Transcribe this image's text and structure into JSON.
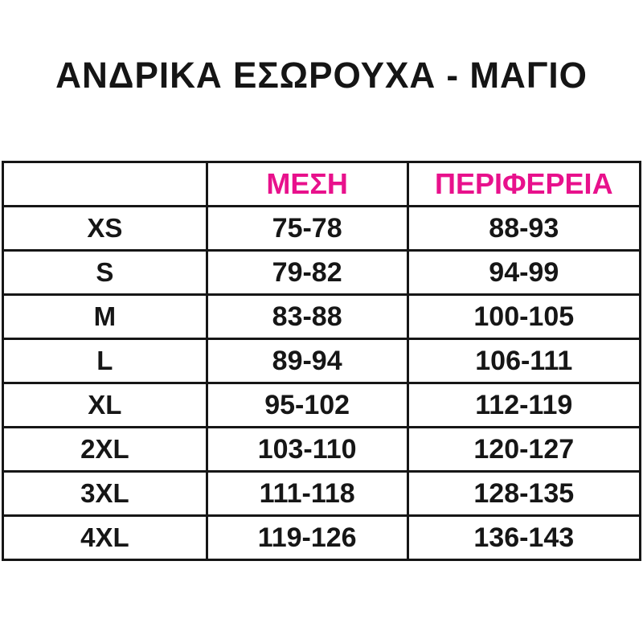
{
  "page": {
    "title": "ΑΝΔΡΙΚΑ ΕΣΩΡΟΥΧΑ - ΜΑΓΙΟ"
  },
  "colors": {
    "header_text": "#E8118C",
    "body_text": "#161616",
    "border": "#161616",
    "background": "#ffffff"
  },
  "table": {
    "headers": {
      "size": "",
      "waist": "ΜΕΣΗ",
      "hips": "ΠΕΡΙΦΕΡΕΙΑ"
    },
    "rows": [
      {
        "size": "XS",
        "waist": "75-78",
        "hips": "88-93"
      },
      {
        "size": "S",
        "waist": "79-82",
        "hips": "94-99"
      },
      {
        "size": "M",
        "waist": "83-88",
        "hips": "100-105"
      },
      {
        "size": "L",
        "waist": "89-94",
        "hips": "106-111"
      },
      {
        "size": "XL",
        "waist": "95-102",
        "hips": "112-119"
      },
      {
        "size": "2XL",
        "waist": "103-110",
        "hips": "120-127"
      },
      {
        "size": "3XL",
        "waist": "111-118",
        "hips": "128-135"
      },
      {
        "size": "4XL",
        "waist": "119-126",
        "hips": "136-143"
      }
    ]
  },
  "chart_data": {
    "type": "table",
    "title": "ΑΝΔΡΙΚΑ ΕΣΩΡΟΥΧΑ - ΜΑΓΙΟ",
    "columns": [
      "",
      "ΜΕΣΗ",
      "ΠΕΡΙΦΕΡΕΙΑ"
    ],
    "rows": [
      [
        "XS",
        "75-78",
        "88-93"
      ],
      [
        "S",
        "79-82",
        "94-99"
      ],
      [
        "M",
        "83-88",
        "100-105"
      ],
      [
        "L",
        "89-94",
        "106-111"
      ],
      [
        "XL",
        "95-102",
        "112-119"
      ],
      [
        "2XL",
        "103-110",
        "120-127"
      ],
      [
        "3XL",
        "111-118",
        "128-135"
      ],
      [
        "4XL",
        "119-126",
        "136-143"
      ]
    ],
    "layout": {
      "header_text_color": "#E8118C",
      "grid": "on",
      "units_implied": "cm"
    }
  }
}
